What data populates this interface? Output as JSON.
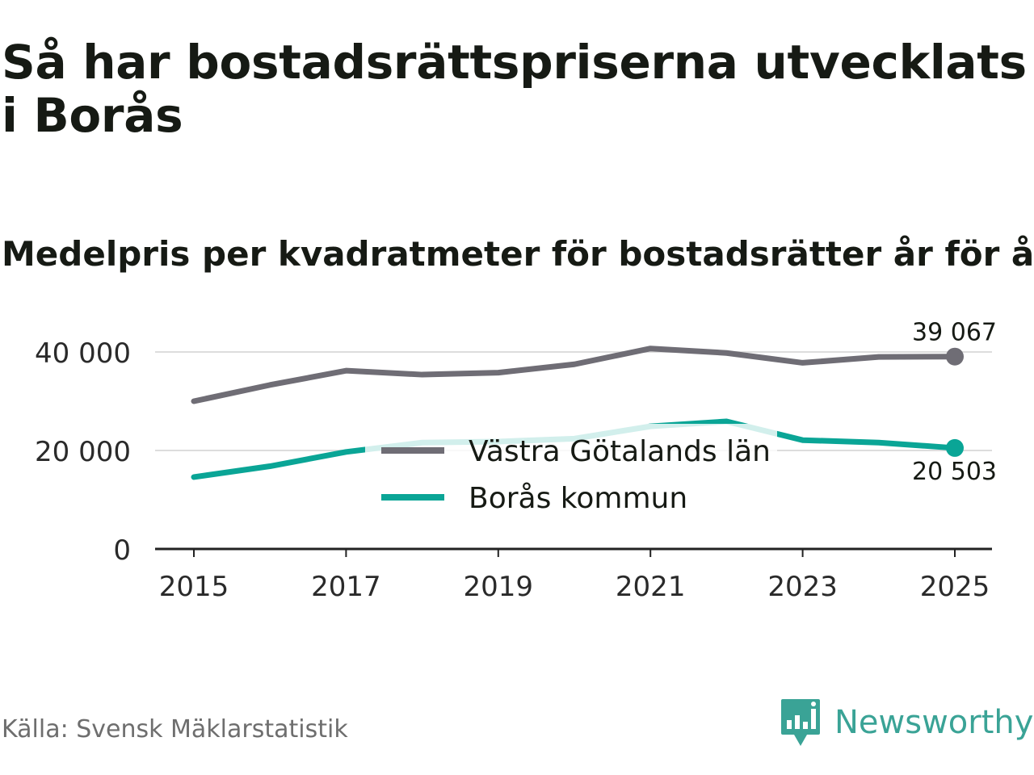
{
  "title": "Så har bostadsrättspriserna utvecklats i Borås",
  "subtitle": "Medelpris per kvadratmeter för bostadsrätter år för år",
  "source": "Källa: Svensk Mäklarstatistik",
  "brand": {
    "name": "Newsworthy",
    "color": "#3aa396"
  },
  "chart_data": {
    "type": "line",
    "x": [
      2015,
      2016,
      2017,
      2018,
      2019,
      2020,
      2021,
      2022,
      2023,
      2024,
      2025
    ],
    "series": [
      {
        "name": "Västra Götalands län",
        "color": "#6f6d75",
        "values": [
          30000,
          33300,
          36200,
          35400,
          35800,
          37500,
          40700,
          39800,
          37800,
          39000,
          39067
        ]
      },
      {
        "name": "Borås kommun",
        "color": "#0aa596",
        "values": [
          14600,
          16800,
          19700,
          21600,
          21800,
          22400,
          24900,
          25900,
          22100,
          21600,
          20503
        ]
      }
    ],
    "end_labels": [
      "39 067",
      "20 503"
    ],
    "xticks": [
      "2015",
      "2017",
      "2019",
      "2021",
      "2023",
      "2025"
    ],
    "yticks": [
      0,
      20000,
      40000
    ],
    "ytick_labels": [
      "0",
      "20 000",
      "40 000"
    ],
    "ylim": [
      0,
      40000
    ],
    "xlabel": "",
    "ylabel": "",
    "legend": "center"
  }
}
